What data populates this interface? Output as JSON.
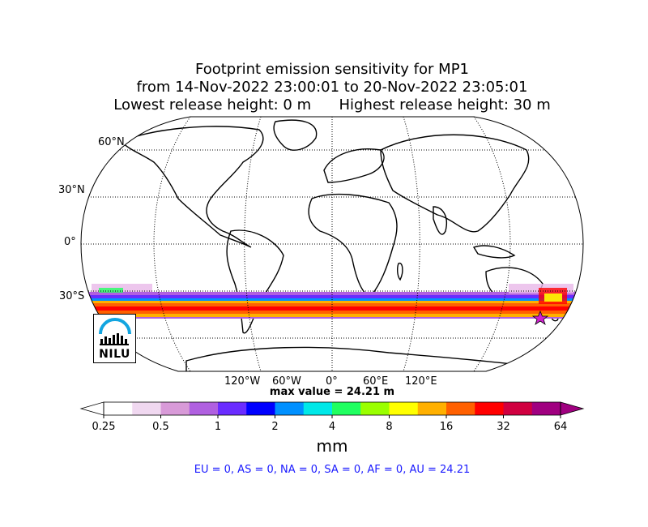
{
  "title": {
    "line1": "Footprint emission sensitivity for MP1",
    "line2": "from 14-Nov-2022 23:00:01 to 20-Nov-2022 23:05:01",
    "line3_left": "Lowest release height: 0 m",
    "line3_right": "Highest release height: 30 m"
  },
  "map": {
    "projection": "Robinson",
    "lat_labels": [
      "60°N",
      "30°N",
      "0°",
      "30°S"
    ],
    "lon_labels": [
      "120°W",
      "60°W",
      "0°",
      "60°E",
      "120°E"
    ],
    "release_marker": "star-icon",
    "max_value_text": "max value = 24.21 m"
  },
  "colorbar": {
    "tick_labels": [
      "0.25",
      "0.5",
      "1",
      "2",
      "4",
      "8",
      "16",
      "32",
      "64"
    ],
    "unit": "mm",
    "colors": [
      "#ffffff",
      "#f0d8f0",
      "#d89ad8",
      "#b060e0",
      "#6a2cff",
      "#0000ff",
      "#0090ff",
      "#00e8e8",
      "#20ff60",
      "#9aff00",
      "#ffff00",
      "#ffb000",
      "#ff6000",
      "#ff0000",
      "#d00040",
      "#a00080"
    ]
  },
  "region_summary": "EU = 0,  AS = 0,  NA = 0,  SA = 0,  AF = 0,  AU = 24.21",
  "logo": {
    "text": "NILU"
  }
}
